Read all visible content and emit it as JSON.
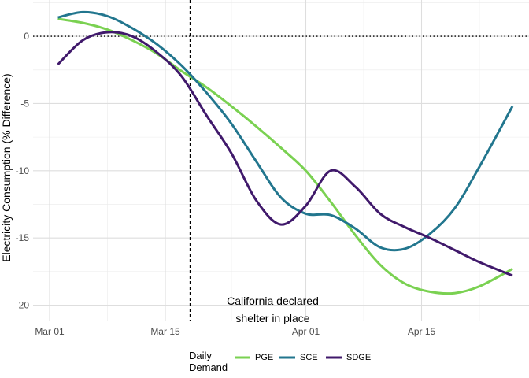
{
  "chart_data": {
    "type": "line",
    "xlabel": "",
    "ylabel": "Electricity Consumption (% Difference)",
    "x_domain": [
      "2020-02-28",
      "2020-04-28"
    ],
    "ylim": [
      -21.2,
      2.7
    ],
    "x_ticks": [
      {
        "date": "2020-03-01",
        "label": "Mar 01"
      },
      {
        "date": "2020-03-15",
        "label": "Mar 15"
      },
      {
        "date": "2020-04-01",
        "label": "Apr 01"
      },
      {
        "date": "2020-04-15",
        "label": "Apr 15"
      }
    ],
    "y_ticks": [
      {
        "value": 0,
        "label": "0"
      },
      {
        "value": -5,
        "label": "-5"
      },
      {
        "value": -10,
        "label": "-10"
      },
      {
        "value": -15,
        "label": "-15"
      },
      {
        "value": -20,
        "label": "-20"
      }
    ],
    "grid": true,
    "hline": {
      "value": 0,
      "style": "dotted"
    },
    "vline": {
      "date": "2020-03-18",
      "style": "dashed"
    },
    "annotation": {
      "lines": [
        "California declared",
        "shelter in place"
      ],
      "date": "2020-03-28",
      "value": -20.6
    },
    "legend": {
      "title_lines": [
        "Daily",
        "Demand"
      ],
      "placement": "bottom"
    },
    "series": [
      {
        "name": "PGE",
        "color": "#7ad151",
        "points": [
          [
            "2020-03-02",
            1.3
          ],
          [
            "2020-03-05",
            1.0
          ],
          [
            "2020-03-08",
            0.5
          ],
          [
            "2020-03-11",
            -0.3
          ],
          [
            "2020-03-14",
            -1.3
          ],
          [
            "2020-03-17",
            -2.6
          ],
          [
            "2020-03-20",
            -3.8
          ],
          [
            "2020-03-23",
            -5.2
          ],
          [
            "2020-03-26",
            -6.7
          ],
          [
            "2020-03-29",
            -8.3
          ],
          [
            "2020-04-01",
            -10.0
          ],
          [
            "2020-04-04",
            -12.3
          ],
          [
            "2020-04-07",
            -14.8
          ],
          [
            "2020-04-10",
            -17.0
          ],
          [
            "2020-04-13",
            -18.4
          ],
          [
            "2020-04-16",
            -19.0
          ],
          [
            "2020-04-19",
            -19.1
          ],
          [
            "2020-04-22",
            -18.6
          ],
          [
            "2020-04-26",
            -17.3
          ]
        ]
      },
      {
        "name": "SCE",
        "color": "#22768e",
        "points": [
          [
            "2020-03-02",
            1.4
          ],
          [
            "2020-03-05",
            1.8
          ],
          [
            "2020-03-08",
            1.5
          ],
          [
            "2020-03-11",
            0.6
          ],
          [
            "2020-03-14",
            -0.6
          ],
          [
            "2020-03-17",
            -2.2
          ],
          [
            "2020-03-20",
            -4.2
          ],
          [
            "2020-03-23",
            -6.5
          ],
          [
            "2020-03-26",
            -9.3
          ],
          [
            "2020-03-29",
            -12.0
          ],
          [
            "2020-04-01",
            -13.2
          ],
          [
            "2020-04-04",
            -13.3
          ],
          [
            "2020-04-07",
            -14.3
          ],
          [
            "2020-04-10",
            -15.7
          ],
          [
            "2020-04-13",
            -15.8
          ],
          [
            "2020-04-16",
            -14.7
          ],
          [
            "2020-04-19",
            -12.8
          ],
          [
            "2020-04-22",
            -9.7
          ],
          [
            "2020-04-26",
            -5.2
          ]
        ]
      },
      {
        "name": "SDGE",
        "color": "#40196b",
        "points": [
          [
            "2020-03-02",
            -2.1
          ],
          [
            "2020-03-05",
            -0.3
          ],
          [
            "2020-03-08",
            0.3
          ],
          [
            "2020-03-11",
            0.0
          ],
          [
            "2020-03-14",
            -1.2
          ],
          [
            "2020-03-17",
            -3.0
          ],
          [
            "2020-03-20",
            -5.9
          ],
          [
            "2020-03-23",
            -8.7
          ],
          [
            "2020-03-26",
            -12.2
          ],
          [
            "2020-03-29",
            -14.0
          ],
          [
            "2020-04-01",
            -12.6
          ],
          [
            "2020-04-04",
            -10.0
          ],
          [
            "2020-04-07",
            -11.2
          ],
          [
            "2020-04-10",
            -13.2
          ],
          [
            "2020-04-13",
            -14.2
          ],
          [
            "2020-04-16",
            -15.0
          ],
          [
            "2020-04-19",
            -15.9
          ],
          [
            "2020-04-22",
            -16.8
          ],
          [
            "2020-04-26",
            -17.8
          ]
        ]
      }
    ]
  }
}
